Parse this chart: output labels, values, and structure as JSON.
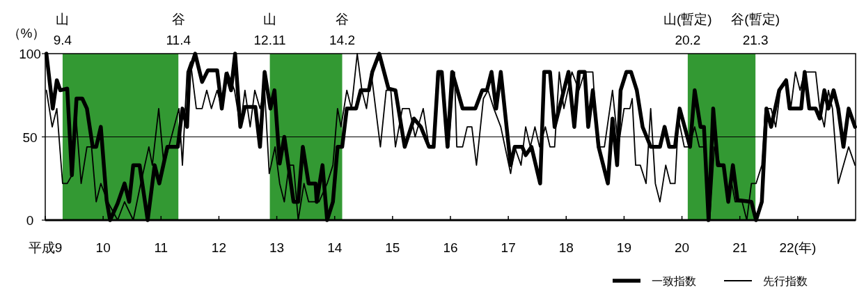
{
  "chart_data": {
    "type": "line",
    "ylabel": "（%）",
    "xlim": [
      9,
      23
    ],
    "ylim": [
      0,
      100
    ],
    "yticks": [
      0,
      50,
      100
    ],
    "xticks": [
      {
        "value": 9,
        "label": "平成9"
      },
      10,
      11,
      12,
      13,
      14,
      15,
      16,
      17,
      18,
      19,
      20,
      21,
      {
        "value": 22,
        "label": "22(年)"
      }
    ],
    "grid": false,
    "legend": "bottom right",
    "line_style": "solid",
    "marker": "none",
    "ref_lines": [
      {
        "axis": "y",
        "value": 50,
        "color": "#000000"
      }
    ],
    "bands": [
      {
        "axis": "x",
        "from": 9.3,
        "to": 11.3,
        "color": "#339933"
      },
      {
        "axis": "x",
        "from": 12.88,
        "to": 14.13,
        "color": "#339933"
      },
      {
        "axis": "x",
        "from": 20.1,
        "to": 21.27,
        "color": "#339933"
      }
    ],
    "annotations": [
      {
        "text": "山\n9.4",
        "x": 9.3,
        "y": 100
      },
      {
        "text": "谷\n11.4",
        "x": 11.3,
        "y": 100
      },
      {
        "text": "山\n12.11",
        "x": 12.88,
        "y": 100
      },
      {
        "text": "谷\n14.2",
        "x": 14.13,
        "y": 100
      },
      {
        "text": "山(暫定)\n20.2",
        "x": 20.1,
        "y": 100
      },
      {
        "text": "谷(暫定)\n21.3",
        "x": 21.27,
        "y": 100
      }
    ],
    "series": [
      {
        "name": "一致指数",
        "color": "#000000",
        "x": [
          9.02,
          9.13,
          9.2,
          9.26,
          9.38,
          9.46,
          9.54,
          9.64,
          9.72,
          9.82,
          9.88,
          9.96,
          10.06,
          10.12,
          10.25,
          10.37,
          10.45,
          10.52,
          10.63,
          10.77,
          10.89,
          10.97,
          11.11,
          11.29,
          11.37,
          11.45,
          11.49,
          11.59,
          11.71,
          11.81,
          11.97,
          12.05,
          12.13,
          12.21,
          12.28,
          12.37,
          12.45,
          12.63,
          12.71,
          12.79,
          12.89,
          12.96,
          13.05,
          13.13,
          13.29,
          13.37,
          13.45,
          13.55,
          13.67,
          13.69,
          13.79,
          13.87,
          13.97,
          14.05,
          14.13,
          14.21,
          14.37,
          14.45,
          14.59,
          14.65,
          14.77,
          14.93,
          15.05,
          15.21,
          15.37,
          15.49,
          15.63,
          15.71,
          15.79,
          15.85,
          15.95,
          16.03,
          16.21,
          16.43,
          16.55,
          16.63,
          16.71,
          16.79,
          16.87,
          17.04,
          17.11,
          17.24,
          17.3,
          17.4,
          17.55,
          17.62,
          17.72,
          17.8,
          18.04,
          18.14,
          18.22,
          18.32,
          18.38,
          18.46,
          18.56,
          18.72,
          18.8,
          18.88,
          18.94,
          19.04,
          19.12,
          19.22,
          19.32,
          19.46,
          19.62,
          19.7,
          19.78,
          19.88,
          19.96,
          20.14,
          20.22,
          20.32,
          20.38,
          20.46,
          20.54,
          20.62,
          20.72,
          20.8,
          20.88,
          20.96,
          21.2,
          21.28,
          21.38,
          21.46,
          21.54,
          21.68,
          21.8,
          21.86,
          22.06,
          22.12,
          22.2,
          22.31,
          22.38,
          22.46,
          22.53,
          22.62,
          22.7,
          22.79,
          22.88,
          22.99
        ],
        "values": [
          100,
          67,
          84,
          78,
          79,
          27,
          73,
          73,
          67,
          44,
          44,
          56,
          12,
          0,
          10,
          22,
          11,
          33,
          33,
          0,
          33,
          22,
          44,
          44,
          67,
          56,
          89,
          100,
          83,
          90,
          90,
          67,
          88,
          78,
          100,
          56,
          68,
          68,
          44,
          89,
          67,
          78,
          34,
          50,
          11,
          11,
          44,
          22,
          22,
          11,
          33,
          0,
          11,
          44,
          44,
          67,
          67,
          78,
          78,
          89,
          100,
          79,
          78,
          44,
          61,
          56,
          44,
          44,
          89,
          89,
          44,
          89,
          67,
          67,
          78,
          78,
          89,
          67,
          89,
          33,
          44,
          44,
          39,
          44,
          22,
          89,
          89,
          56,
          89,
          56,
          89,
          89,
          56,
          78,
          44,
          22,
          61,
          33,
          78,
          89,
          89,
          78,
          56,
          44,
          44,
          56,
          44,
          44,
          67,
          44,
          78,
          56,
          56,
          0,
          67,
          33,
          33,
          11,
          33,
          12,
          11,
          0,
          11,
          67,
          56,
          78,
          84,
          67,
          67,
          89,
          67,
          67,
          61,
          78,
          67,
          78,
          67,
          44,
          67,
          56
        ]
      },
      {
        "name": "先行指数",
        "color": "#000000",
        "x": [
          9.02,
          9.12,
          9.2,
          9.3,
          9.38,
          9.46,
          9.52,
          9.62,
          9.72,
          9.8,
          9.88,
          9.96,
          10.08,
          10.25,
          10.37,
          10.52,
          10.65,
          10.79,
          10.85,
          10.96,
          11.05,
          11.31,
          11.37,
          11.45,
          11.51,
          11.61,
          11.71,
          11.79,
          11.87,
          11.97,
          12.05,
          12.15,
          12.27,
          12.37,
          12.45,
          12.54,
          12.62,
          12.71,
          12.79,
          12.87,
          12.97,
          13.05,
          13.13,
          13.21,
          13.29,
          13.37,
          13.47,
          13.55,
          13.67,
          13.73,
          13.87,
          13.97,
          14.05,
          14.11,
          14.21,
          14.29,
          14.39,
          14.47,
          14.55,
          14.63,
          14.79,
          14.89,
          14.97,
          15.05,
          15.17,
          15.29,
          15.39,
          15.53,
          15.63,
          15.71,
          15.77,
          15.85,
          15.97,
          16.07,
          16.11,
          16.21,
          16.29,
          16.37,
          16.45,
          16.57,
          16.65,
          16.75,
          16.87,
          17.04,
          17.11,
          17.22,
          17.3,
          17.38,
          17.46,
          17.54,
          17.64,
          17.72,
          17.8,
          17.88,
          17.96,
          18.1,
          18.22,
          18.32,
          18.46,
          18.54,
          18.66,
          18.8,
          18.9,
          19.0,
          19.1,
          19.14,
          19.2,
          19.28,
          19.38,
          19.46,
          19.54,
          19.62,
          19.72,
          19.8,
          19.88,
          19.94,
          20.04,
          20.12,
          20.22,
          20.3,
          20.38,
          20.48,
          20.56,
          20.66,
          20.72,
          20.8,
          20.86,
          20.92,
          21.04,
          21.12,
          21.2,
          21.28,
          21.38,
          21.44,
          21.54,
          21.62,
          21.7,
          21.8,
          21.88,
          21.96,
          22.04,
          22.12,
          22.31,
          22.38,
          22.46,
          22.53,
          22.6,
          22.7,
          22.88,
          22.99
        ],
        "values": [
          78,
          56,
          67,
          22,
          22,
          27,
          67,
          22,
          44,
          44,
          11,
          22,
          11,
          0,
          11,
          0,
          22,
          44,
          33,
          67,
          33,
          67,
          33,
          89,
          95,
          67,
          67,
          78,
          67,
          78,
          67,
          89,
          78,
          56,
          78,
          56,
          78,
          67,
          78,
          28,
          44,
          22,
          11,
          33,
          33,
          0,
          22,
          11,
          11,
          11,
          22,
          33,
          67,
          56,
          78,
          67,
          100,
          78,
          67,
          89,
          44,
          78,
          78,
          44,
          67,
          67,
          50,
          67,
          44,
          44,
          89,
          89,
          44,
          89,
          44,
          44,
          56,
          56,
          33,
          73,
          78,
          67,
          56,
          28,
          44,
          33,
          56,
          44,
          56,
          44,
          56,
          44,
          44,
          89,
          67,
          89,
          78,
          89,
          89,
          44,
          44,
          78,
          44,
          67,
          67,
          73,
          33,
          33,
          22,
          67,
          22,
          11,
          33,
          22,
          22,
          61,
          44,
          44,
          56,
          44,
          44,
          0,
          44,
          33,
          33,
          11,
          22,
          11,
          11,
          0,
          22,
          22,
          33,
          67,
          67,
          56,
          78,
          84,
          67,
          89,
          78,
          89,
          89,
          67,
          56,
          78,
          67,
          22,
          44,
          33
        ]
      }
    ]
  }
}
